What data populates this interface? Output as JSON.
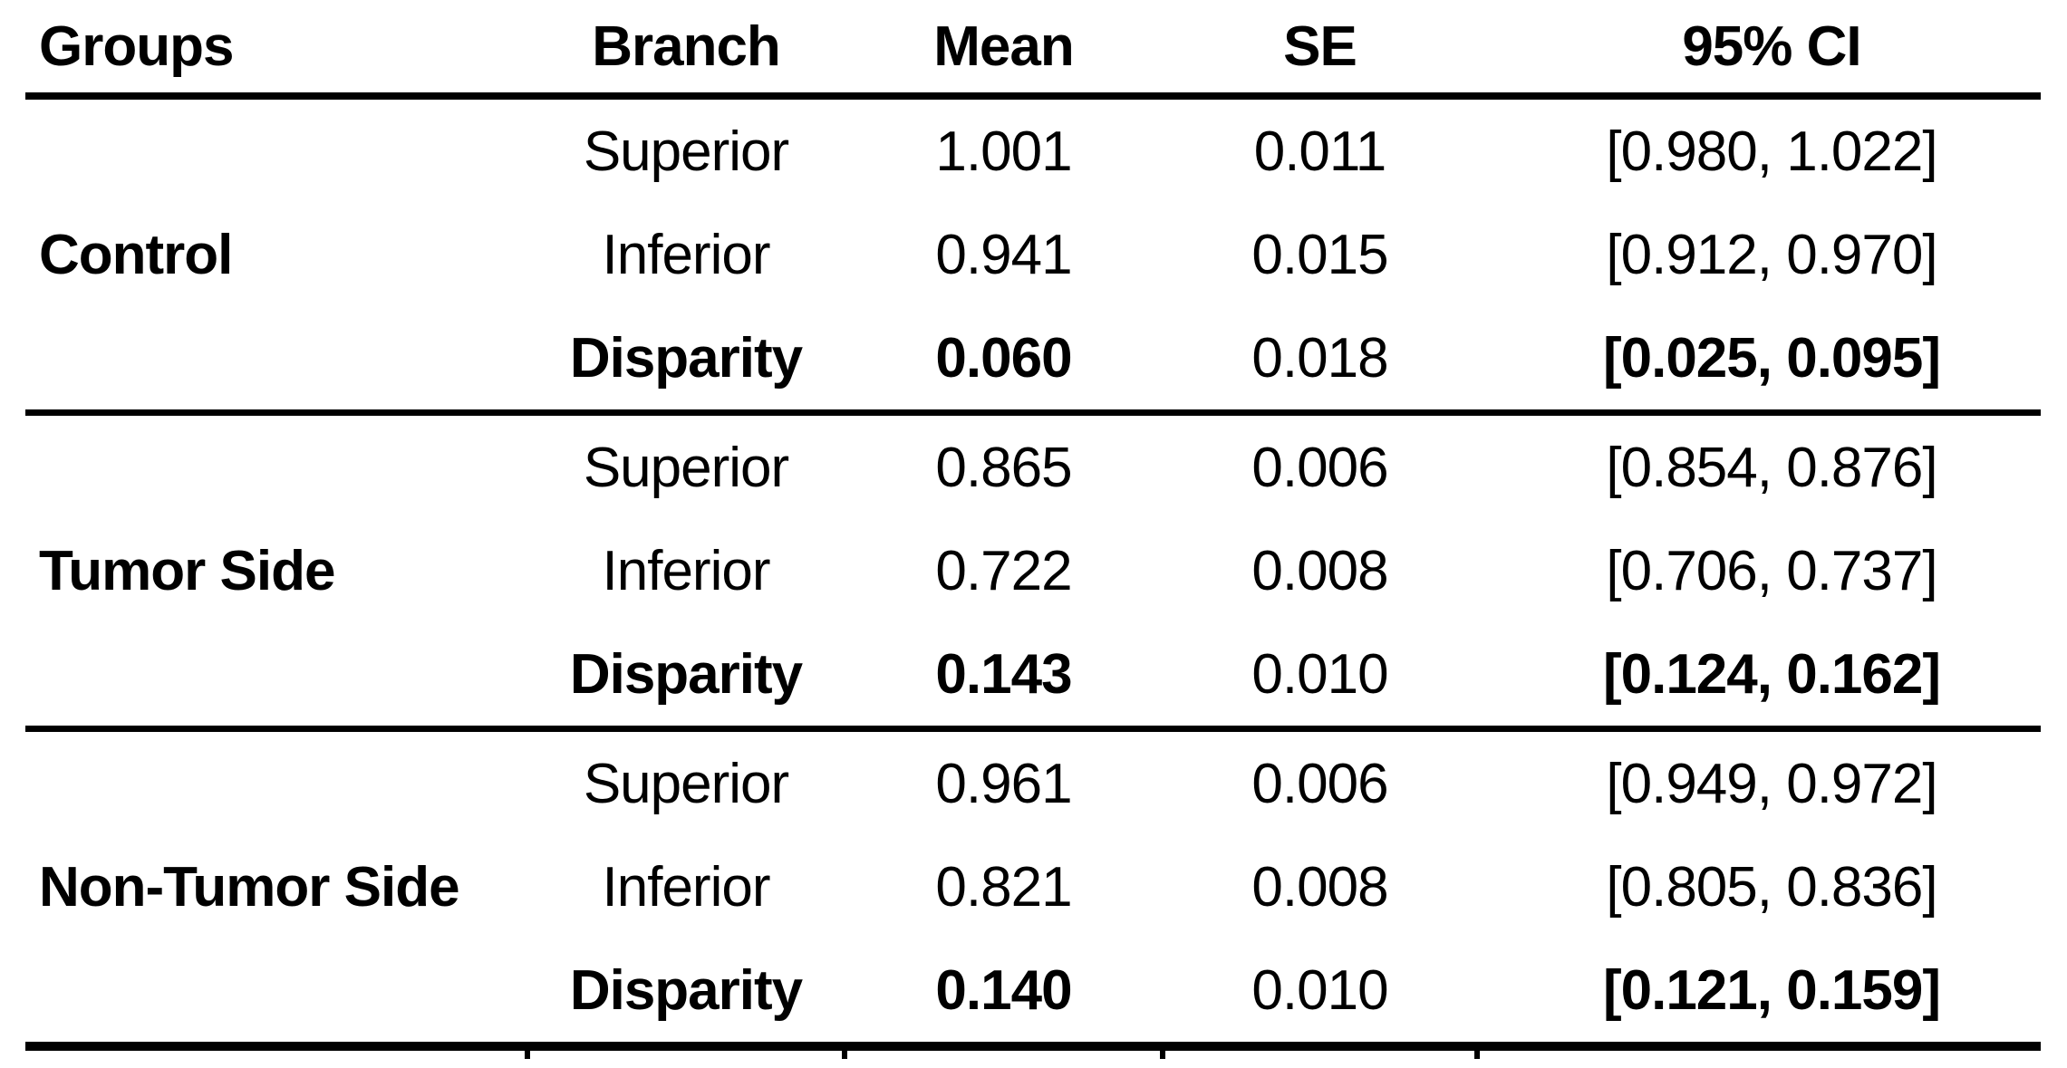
{
  "colors": {
    "text": "#000000",
    "background": "#ffffff",
    "rule": "#000000"
  },
  "table": {
    "columns": [
      "Groups",
      "Branch",
      "Mean",
      "SE",
      "95% CI"
    ],
    "sections": [
      {
        "group": "Control",
        "rows": [
          {
            "branch": "Superior",
            "mean": "1.001",
            "se": "0.011",
            "ci": "[0.980, 1.022]"
          },
          {
            "branch": "Inferior",
            "mean": "0.941",
            "se": "0.015",
            "ci": "[0.912, 0.970]"
          },
          {
            "branch": "Disparity",
            "mean": "0.060",
            "se": "0.018",
            "ci": "[0.025, 0.095]"
          }
        ]
      },
      {
        "group": "Tumor Side",
        "rows": [
          {
            "branch": "Superior",
            "mean": "0.865",
            "se": "0.006",
            "ci": "[0.854, 0.876]"
          },
          {
            "branch": "Inferior",
            "mean": "0.722",
            "se": "0.008",
            "ci": "[0.706, 0.737]"
          },
          {
            "branch": "Disparity",
            "mean": "0.143",
            "se": "0.010",
            "ci": "[0.124, 0.162]"
          }
        ]
      },
      {
        "group": "Non-Tumor Side",
        "rows": [
          {
            "branch": "Superior",
            "mean": "0.961",
            "se": "0.006",
            "ci": "[0.949, 0.972]"
          },
          {
            "branch": "Inferior",
            "mean": "0.821",
            "se": "0.008",
            "ci": "[0.805, 0.836]"
          },
          {
            "branch": "Disparity",
            "mean": "0.140",
            "se": "0.010",
            "ci": "[0.121, 0.159]"
          }
        ]
      }
    ]
  }
}
